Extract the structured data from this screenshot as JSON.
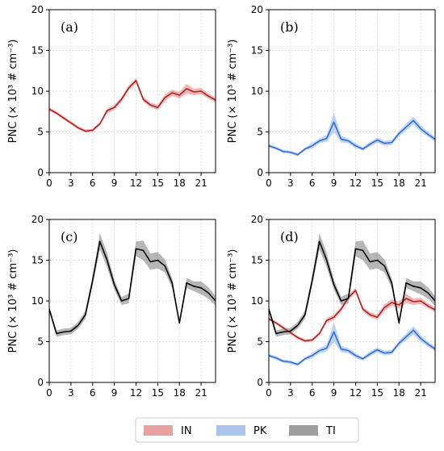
{
  "chart_data": [
    {
      "type": "line",
      "panel": "(a)",
      "ylabel": "PNC (× 10³ # cm⁻³)",
      "xlim": [
        0,
        23
      ],
      "ylim": [
        0,
        20
      ],
      "xticks": [
        0,
        3,
        6,
        9,
        12,
        15,
        18,
        21
      ],
      "yticks": [
        0,
        5,
        10,
        15,
        20
      ],
      "grid": true,
      "series": [
        {
          "name": "IN",
          "color": "#b22222",
          "band_color": "#e8a0a0",
          "x": [
            0,
            1,
            2,
            3,
            4,
            5,
            6,
            7,
            8,
            9,
            10,
            11,
            12,
            13,
            14,
            15,
            16,
            17,
            18,
            19,
            20,
            21,
            22,
            23
          ],
          "values": [
            7.8,
            7.3,
            6.7,
            6.1,
            5.5,
            5.1,
            5.2,
            6.0,
            7.6,
            8.0,
            9.0,
            10.4,
            11.3,
            9.0,
            8.3,
            8.0,
            9.2,
            9.8,
            9.5,
            10.3,
            9.9,
            10.0,
            9.4,
            8.9
          ],
          "spread": [
            0.2,
            0.2,
            0.2,
            0.2,
            0.2,
            0.2,
            0.2,
            0.2,
            0.3,
            0.3,
            0.3,
            0.3,
            0.3,
            0.3,
            0.3,
            0.3,
            0.4,
            0.4,
            0.4,
            0.6,
            0.4,
            0.4,
            0.3,
            0.3
          ]
        }
      ]
    },
    {
      "type": "line",
      "panel": "(b)",
      "ylabel": "PNC (× 10³ # cm⁻³)",
      "xlim": [
        0,
        23
      ],
      "ylim": [
        0,
        20
      ],
      "xticks": [
        0,
        3,
        6,
        9,
        12,
        15,
        18,
        21
      ],
      "yticks": [
        0,
        5,
        10,
        15,
        20
      ],
      "grid": true,
      "series": [
        {
          "name": "PK",
          "color": "#2f6fd6",
          "band_color": "#aac4ee",
          "x": [
            0,
            1,
            2,
            3,
            4,
            5,
            6,
            7,
            8,
            9,
            10,
            11,
            12,
            13,
            14,
            15,
            16,
            17,
            18,
            19,
            20,
            21,
            22,
            23
          ],
          "values": [
            3.3,
            3.0,
            2.6,
            2.5,
            2.2,
            2.9,
            3.3,
            3.9,
            4.2,
            6.2,
            4.1,
            3.9,
            3.3,
            2.9,
            3.5,
            4.0,
            3.6,
            3.7,
            4.8,
            5.6,
            6.4,
            5.4,
            4.7,
            4.1
          ],
          "spread": [
            0.2,
            0.2,
            0.2,
            0.2,
            0.2,
            0.2,
            0.3,
            0.3,
            0.4,
            1.2,
            0.4,
            0.3,
            0.3,
            0.2,
            0.3,
            0.3,
            0.3,
            0.3,
            0.3,
            0.4,
            0.5,
            0.4,
            0.3,
            0.3
          ]
        }
      ]
    },
    {
      "type": "line",
      "panel": "(c)",
      "ylabel": "PNC (× 10³ # cm⁻³)",
      "xlim": [
        0,
        23
      ],
      "ylim": [
        0,
        20
      ],
      "xticks": [
        0,
        3,
        6,
        9,
        12,
        15,
        18,
        21
      ],
      "yticks": [
        0,
        5,
        10,
        15,
        20
      ],
      "grid": true,
      "series": [
        {
          "name": "TI",
          "color": "#000000",
          "band_color": "#9e9e9e",
          "x": [
            0,
            1,
            2,
            3,
            4,
            5,
            6,
            7,
            8,
            9,
            10,
            11,
            12,
            13,
            14,
            15,
            16,
            17,
            18,
            19,
            20,
            21,
            22,
            23
          ],
          "values": [
            9.0,
            6.0,
            6.2,
            6.3,
            7.0,
            8.3,
            12.5,
            17.3,
            15.0,
            12.0,
            10.0,
            10.3,
            16.4,
            16.2,
            14.8,
            15.0,
            14.3,
            12.2,
            7.3,
            12.2,
            11.8,
            11.6,
            11.0,
            10.0
          ],
          "spread": [
            0.3,
            0.4,
            0.4,
            0.4,
            0.4,
            0.5,
            0.6,
            1.0,
            0.9,
            0.6,
            0.5,
            0.6,
            0.9,
            1.2,
            1.0,
            1.0,
            0.8,
            0.6,
            0.3,
            0.6,
            0.6,
            0.8,
            0.7,
            0.6
          ]
        }
      ]
    },
    {
      "type": "line",
      "panel": "(d)",
      "ylabel": "PNC (× 10³ # cm⁻³)",
      "xlim": [
        0,
        23
      ],
      "ylim": [
        0,
        20
      ],
      "xticks": [
        0,
        3,
        6,
        9,
        12,
        15,
        18,
        21
      ],
      "yticks": [
        0,
        5,
        10,
        15,
        20
      ],
      "grid": true,
      "series": [
        {
          "name": "IN",
          "color": "#b22222",
          "band_color": "#e8a0a0",
          "x": [
            0,
            1,
            2,
            3,
            4,
            5,
            6,
            7,
            8,
            9,
            10,
            11,
            12,
            13,
            14,
            15,
            16,
            17,
            18,
            19,
            20,
            21,
            22,
            23
          ],
          "values": [
            7.8,
            7.3,
            6.7,
            6.1,
            5.5,
            5.1,
            5.2,
            6.0,
            7.6,
            8.0,
            9.0,
            10.4,
            11.3,
            9.0,
            8.3,
            8.0,
            9.2,
            9.8,
            9.5,
            10.3,
            9.9,
            10.0,
            9.4,
            8.9
          ],
          "spread": [
            0.2,
            0.2,
            0.2,
            0.2,
            0.2,
            0.2,
            0.2,
            0.2,
            0.3,
            0.3,
            0.3,
            0.3,
            0.3,
            0.3,
            0.3,
            0.3,
            0.4,
            0.4,
            0.4,
            0.6,
            0.4,
            0.4,
            0.3,
            0.3
          ]
        },
        {
          "name": "PK",
          "color": "#2f6fd6",
          "band_color": "#aac4ee",
          "x": [
            0,
            1,
            2,
            3,
            4,
            5,
            6,
            7,
            8,
            9,
            10,
            11,
            12,
            13,
            14,
            15,
            16,
            17,
            18,
            19,
            20,
            21,
            22,
            23
          ],
          "values": [
            3.3,
            3.0,
            2.6,
            2.5,
            2.2,
            2.9,
            3.3,
            3.9,
            4.2,
            6.2,
            4.1,
            3.9,
            3.3,
            2.9,
            3.5,
            4.0,
            3.6,
            3.7,
            4.8,
            5.6,
            6.4,
            5.4,
            4.7,
            4.1
          ],
          "spread": [
            0.2,
            0.2,
            0.2,
            0.2,
            0.2,
            0.2,
            0.3,
            0.3,
            0.4,
            1.2,
            0.4,
            0.3,
            0.3,
            0.2,
            0.3,
            0.3,
            0.3,
            0.3,
            0.3,
            0.4,
            0.5,
            0.4,
            0.3,
            0.3
          ]
        },
        {
          "name": "TI",
          "color": "#000000",
          "band_color": "#9e9e9e",
          "x": [
            0,
            1,
            2,
            3,
            4,
            5,
            6,
            7,
            8,
            9,
            10,
            11,
            12,
            13,
            14,
            15,
            16,
            17,
            18,
            19,
            20,
            21,
            22,
            23
          ],
          "values": [
            9.0,
            6.0,
            6.2,
            6.3,
            7.0,
            8.3,
            12.5,
            17.3,
            15.0,
            12.0,
            10.0,
            10.3,
            16.4,
            16.2,
            14.8,
            15.0,
            14.3,
            12.2,
            7.3,
            12.2,
            11.8,
            11.6,
            11.0,
            10.0
          ],
          "spread": [
            0.3,
            0.4,
            0.4,
            0.4,
            0.4,
            0.5,
            0.6,
            1.0,
            0.9,
            0.6,
            0.5,
            0.6,
            0.9,
            1.2,
            1.0,
            1.0,
            0.8,
            0.6,
            0.3,
            0.6,
            0.6,
            0.8,
            0.7,
            0.6
          ]
        }
      ]
    }
  ],
  "legend": {
    "placement": "bottom-center",
    "entries": [
      {
        "label": "IN",
        "color": "#e8a0a0"
      },
      {
        "label": "PK",
        "color": "#aac4ee"
      },
      {
        "label": "TI",
        "color": "#9e9e9e"
      }
    ]
  }
}
